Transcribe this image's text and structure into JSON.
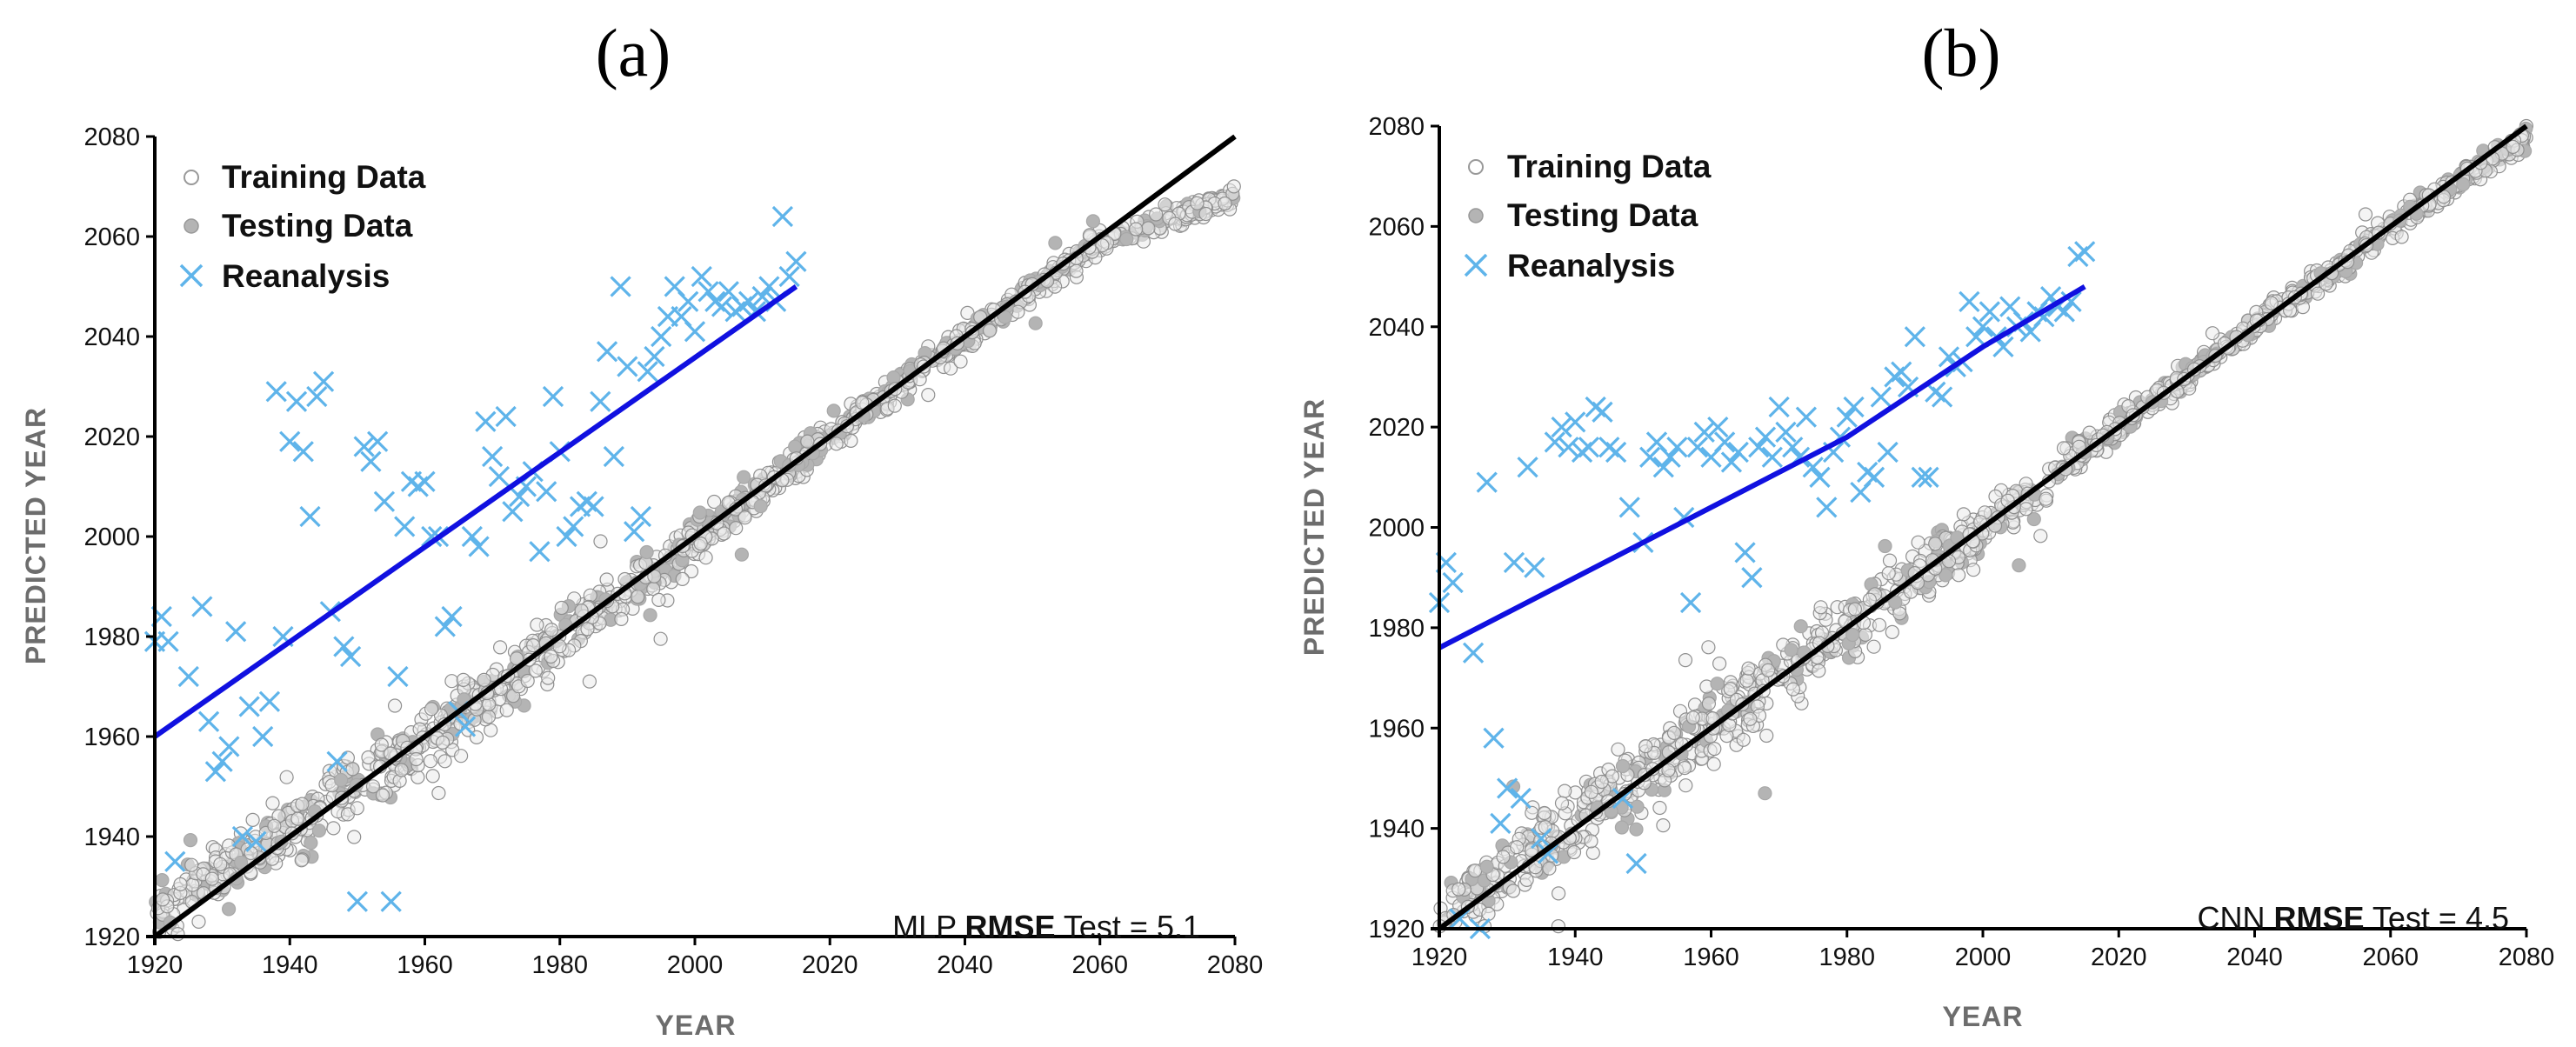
{
  "chart_data": [
    {
      "type": "scatter",
      "panel_label": "(a)",
      "xlabel": "YEAR",
      "ylabel": "PREDICTED YEAR",
      "xlim": [
        1920,
        2080
      ],
      "ylim": [
        1920,
        2080
      ],
      "xticks": [
        "1920",
        "1940",
        "1960",
        "1980",
        "2000",
        "2020",
        "2040",
        "2060",
        "2080"
      ],
      "yticks": [
        "1920",
        "1940",
        "1960",
        "1980",
        "2000",
        "2020",
        "2040",
        "2060",
        "2080"
      ],
      "legend": [
        "Training Data",
        "Testing Data",
        "Reanalysis"
      ],
      "legend_position": "top-left",
      "annotation": {
        "model": "MLP",
        "metric": "RMSE",
        "split": "Test =",
        "value": "5.1"
      },
      "colors": {
        "training": "#9a9a9a",
        "testing": "#b4b4b4",
        "reanalysis": "#5fb4ea",
        "reanalysis_fit": "#1010e0",
        "identity": "#000000"
      },
      "identity_line": {
        "x": [
          1920,
          2080
        ],
        "y": [
          1920,
          2080
        ]
      },
      "model_curve": {
        "x": [
          1920,
          1940,
          1960,
          1980,
          2000,
          2020,
          2040,
          2060,
          2080
        ],
        "y": [
          1925,
          1942,
          1959,
          1979,
          1999,
          2020,
          2040,
          2059,
          2068
        ],
        "spread": [
          4,
          5,
          5,
          5,
          4,
          3,
          2,
          2,
          2
        ],
        "outlier_rate": 0.05
      },
      "reanalysis_fit": {
        "x": [
          1920,
          2015
        ],
        "y": [
          1960,
          2050
        ]
      },
      "reanalysis": {
        "x": [
          1920,
          1921,
          1922,
          1923,
          1925,
          1927,
          1928,
          1929,
          1930,
          1931,
          1932,
          1933,
          1934,
          1935,
          1936,
          1937,
          1938,
          1939,
          1940,
          1941,
          1942,
          1943,
          1944,
          1945,
          1946,
          1947,
          1948,
          1949,
          1950,
          1951,
          1952,
          1953,
          1954,
          1955,
          1956,
          1957,
          1958,
          1959,
          1960,
          1961,
          1962,
          1963,
          1964,
          1965,
          1966,
          1967,
          1968,
          1969,
          1970,
          1971,
          1972,
          1973,
          1974,
          1975,
          1976,
          1977,
          1978,
          1979,
          1980,
          1981,
          1982,
          1983,
          1984,
          1985,
          1986,
          1987,
          1988,
          1989,
          1990,
          1991,
          1992,
          1993,
          1994,
          1995,
          1996,
          1997,
          1998,
          1999,
          2000,
          2001,
          2002,
          2003,
          2004,
          2005,
          2006,
          2007,
          2008,
          2009,
          2010,
          2011,
          2012,
          2013,
          2014,
          2015
        ],
        "y": [
          1979,
          1984,
          1979,
          1935,
          1972,
          1986,
          1963,
          1953,
          1955,
          1958,
          1981,
          1940,
          1966,
          1939,
          1960,
          1967,
          2029,
          1980,
          2019,
          2027,
          2017,
          2004,
          2028,
          2031,
          1985,
          1955,
          1978,
          1976,
          1927,
          2018,
          2015,
          2019,
          2007,
          1927,
          1972,
          2002,
          2011,
          2010,
          2011,
          2000,
          2000,
          1982,
          1984,
          1965,
          1962,
          2000,
          1998,
          2023,
          2016,
          2012,
          2024,
          2005,
          2008,
          2010,
          2013,
          1997,
          2009,
          2028,
          2017,
          2000,
          2002,
          2006,
          2007,
          2006,
          2027,
          2037,
          2016,
          2050,
          2034,
          2001,
          2004,
          2033,
          2036,
          2040,
          2044,
          2050,
          2044,
          2047,
          2041,
          2052,
          2049,
          2047,
          2046,
          2049,
          2045,
          2046,
          2047,
          2045,
          2048,
          2050,
          2047,
          2064,
          2052,
          2055
        ]
      }
    },
    {
      "type": "scatter",
      "panel_label": "(b)",
      "xlabel": "YEAR",
      "ylabel": "PREDICTED YEAR",
      "xlim": [
        1920,
        2080
      ],
      "ylim": [
        1920,
        2080
      ],
      "xticks": [
        "1920",
        "1940",
        "1960",
        "1980",
        "2000",
        "2020",
        "2040",
        "2060",
        "2080"
      ],
      "yticks": [
        "1920",
        "1940",
        "1960",
        "1980",
        "2000",
        "2020",
        "2040",
        "2060",
        "2080"
      ],
      "legend": [
        "Training Data",
        "Testing Data",
        "Reanalysis"
      ],
      "legend_position": "top-left",
      "annotation": {
        "model": "CNN",
        "metric": "RMSE",
        "split": "Test =",
        "value": "4.5"
      },
      "colors": {
        "training": "#9a9a9a",
        "testing": "#b4b4b4",
        "reanalysis": "#5fb4ea",
        "reanalysis_fit": "#1010e0",
        "identity": "#000000"
      },
      "identity_line": {
        "x": [
          1920,
          2080
        ],
        "y": [
          1920,
          2080
        ]
      },
      "model_curve": {
        "x": [
          1920,
          1940,
          1960,
          1980,
          2000,
          2020,
          2040,
          2060,
          2080
        ],
        "y": [
          1923,
          1941,
          1961,
          1980,
          2000,
          2020,
          2040,
          2060,
          2078
        ],
        "spread": [
          4,
          7,
          6,
          6,
          4,
          2,
          2,
          2,
          2
        ],
        "outlier_rate": 0.05
      },
      "reanalysis_fit": {
        "x": [
          1920,
          1940,
          1960,
          1980,
          2000,
          2015
        ],
        "y": [
          1976,
          1990,
          2004,
          2018,
          2036,
          2048
        ]
      },
      "reanalysis": {
        "x": [
          1920,
          1921,
          1922,
          1923,
          1925,
          1926,
          1927,
          1928,
          1929,
          1930,
          1931,
          1932,
          1933,
          1934,
          1935,
          1936,
          1937,
          1938,
          1939,
          1940,
          1941,
          1942,
          1943,
          1944,
          1945,
          1946,
          1947,
          1948,
          1949,
          1950,
          1951,
          1952,
          1953,
          1954,
          1955,
          1956,
          1957,
          1958,
          1959,
          1960,
          1961,
          1962,
          1963,
          1964,
          1965,
          1966,
          1967,
          1968,
          1969,
          1970,
          1971,
          1972,
          1973,
          1974,
          1975,
          1976,
          1977,
          1978,
          1979,
          1980,
          1981,
          1982,
          1983,
          1984,
          1985,
          1986,
          1987,
          1988,
          1989,
          1990,
          1991,
          1992,
          1993,
          1994,
          1995,
          1996,
          1997,
          1998,
          1999,
          2000,
          2001,
          2002,
          2003,
          2004,
          2005,
          2006,
          2007,
          2008,
          2009,
          2010,
          2011,
          2012,
          2013,
          2014,
          2015
        ],
        "y": [
          1985,
          1993,
          1989,
          1922,
          1975,
          1920,
          2009,
          1958,
          1941,
          1948,
          1993,
          1946,
          2012,
          1992,
          1938,
          1935,
          2017,
          2020,
          2016,
          2021,
          2015,
          2016,
          2024,
          2023,
          2016,
          2015,
          1946,
          2004,
          1933,
          1997,
          2014,
          2017,
          2012,
          2014,
          2016,
          2002,
          1985,
          2016,
          2019,
          2014,
          2020,
          2017,
          2013,
          2015,
          1995,
          1990,
          2016,
          2018,
          2014,
          2024,
          2019,
          2016,
          2014,
          2022,
          2012,
          2010,
          2004,
          2015,
          2018,
          2022,
          2024,
          2007,
          2011,
          2010,
          2026,
          2015,
          2030,
          2031,
          2028,
          2038,
          2010,
          2010,
          2027,
          2026,
          2034,
          2032,
          2033,
          2045,
          2038,
          2040,
          2043,
          2038,
          2036,
          2044,
          2040,
          2041,
          2039,
          2043,
          2042,
          2046,
          2044,
          2043,
          2045,
          2054,
          2055
        ]
      }
    }
  ]
}
